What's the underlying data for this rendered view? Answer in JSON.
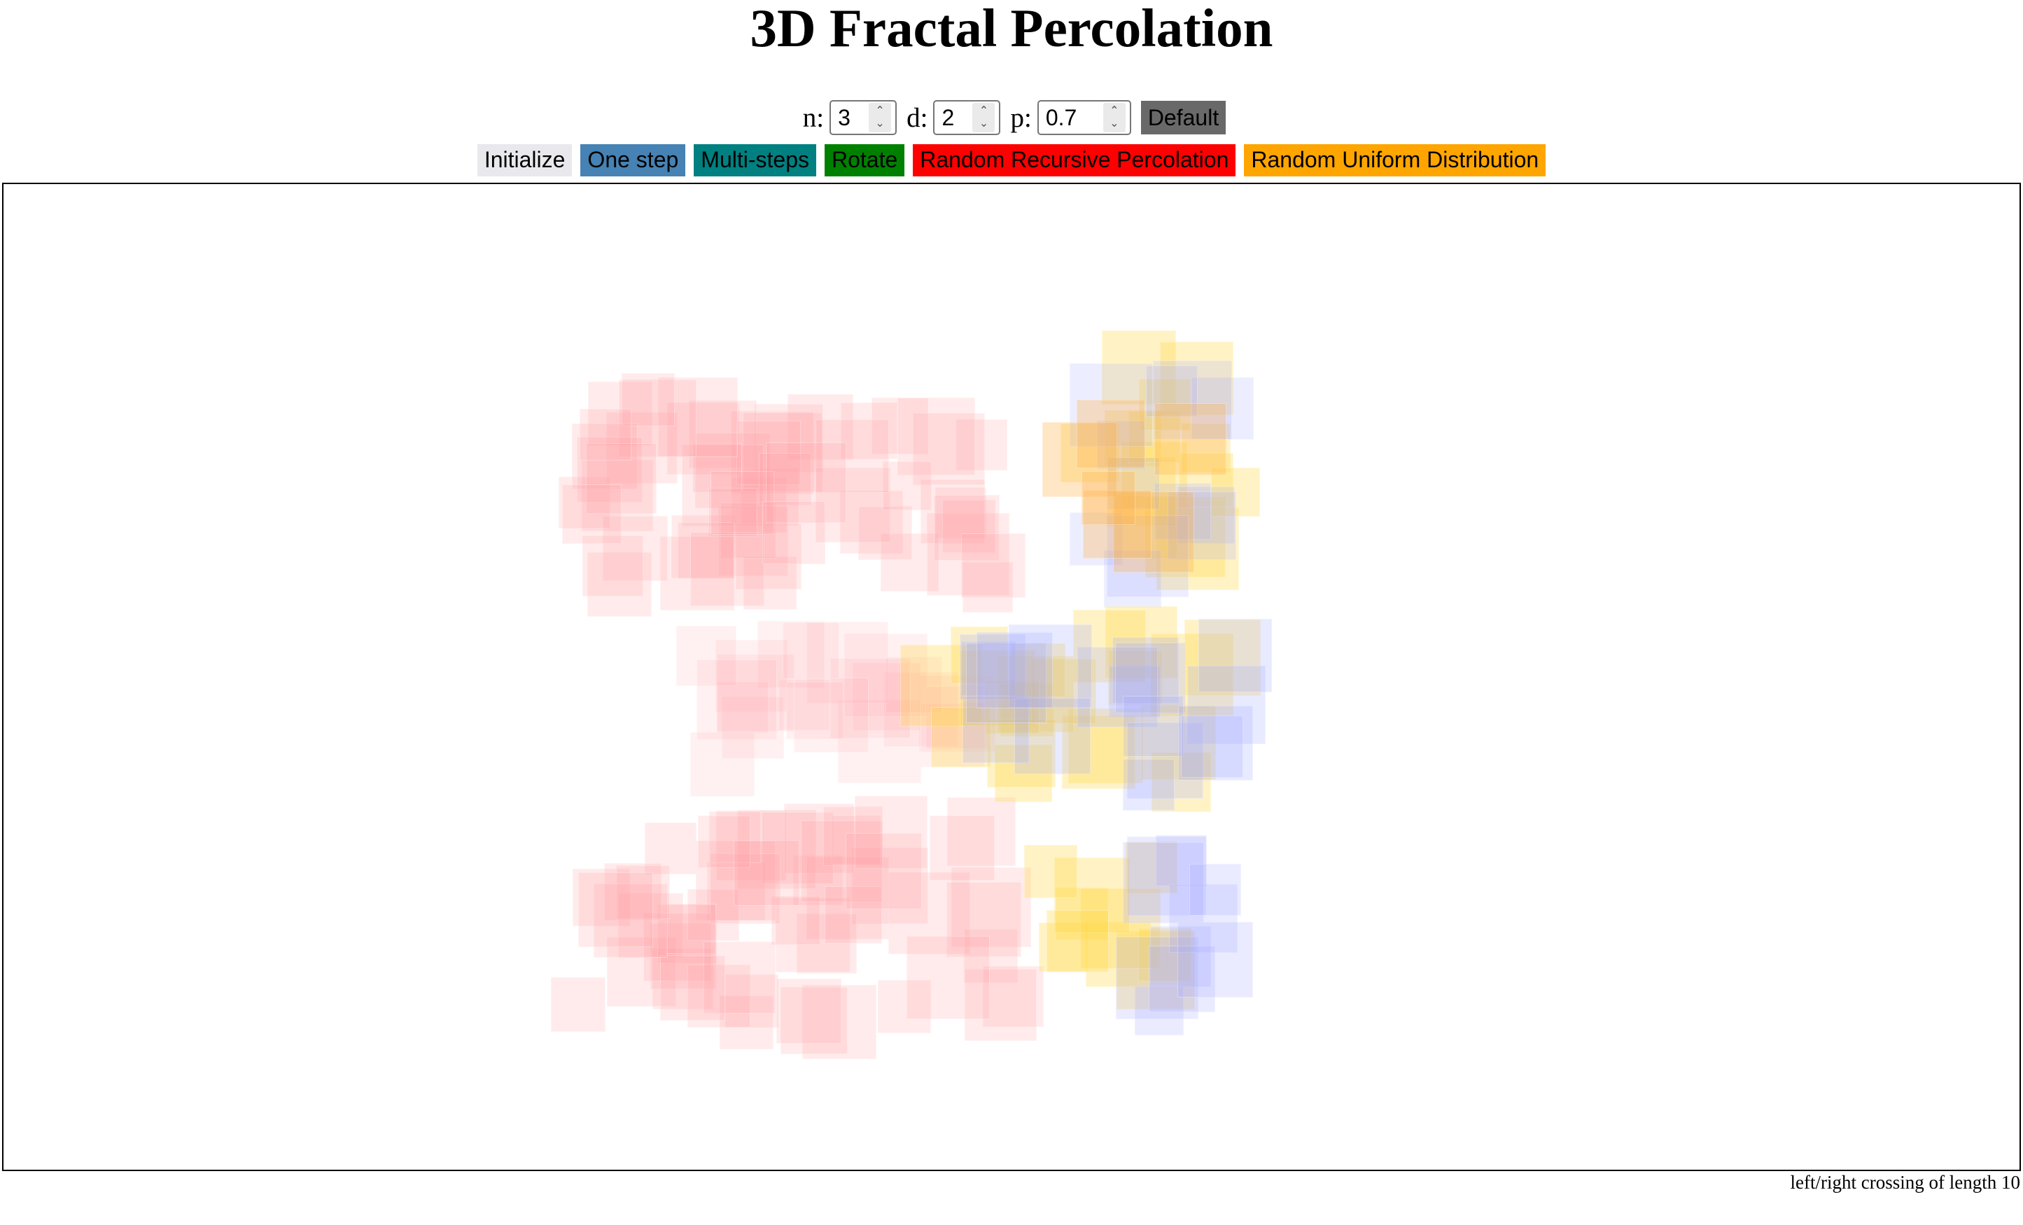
{
  "title": "3D Fractal Percolation",
  "controls": {
    "n_label": "n:",
    "n_value": "3",
    "d_label": "d:",
    "d_value": "2",
    "p_label": "p:",
    "p_value": "0.7",
    "default_label": "Default"
  },
  "buttons": [
    {
      "label": "Initialize",
      "color": "#e9e9ed"
    },
    {
      "label": "One step",
      "color": "#4682b4"
    },
    {
      "label": "Multi-steps",
      "color": "#008080"
    },
    {
      "label": "Rotate",
      "color": "#008000"
    },
    {
      "label": "Random Recursive Percolation",
      "color": "#ff0000"
    },
    {
      "label": "Random Uniform Distribution",
      "color": "#ffa500"
    }
  ],
  "default_color": "#696969",
  "colors": {
    "red": "#ff9aa0",
    "blue": "#9ea6ff",
    "yellow": "#ffd740",
    "orange": "#ffb04a"
  },
  "status": "left/right crossing of length 10"
}
